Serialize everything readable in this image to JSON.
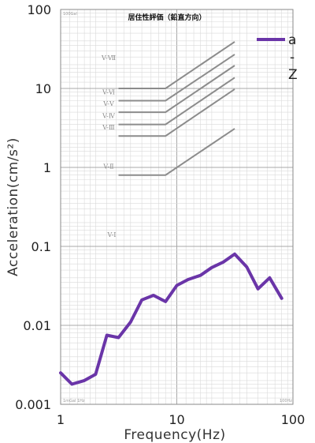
{
  "chart_data": {
    "type": "line",
    "title": "居住性評価（鉛直方向）",
    "xlabel": "Frequency(Hz)",
    "ylabel": "Acceleration(cm/s²)",
    "xscale": "log",
    "yscale": "log",
    "xlim": [
      1,
      100
    ],
    "ylim": [
      0.001,
      100
    ],
    "x_tick_labels": [
      "1",
      "10",
      "100"
    ],
    "y_tick_labels": [
      "0.001",
      "0.01",
      "0.1",
      "1",
      "10",
      "100"
    ],
    "grid": true,
    "legend": {
      "placement": "top-right",
      "entries": [
        "a",
        "-",
        "Z"
      ]
    },
    "series": [
      {
        "name": "a-Z",
        "color": "#6a35a8",
        "x": [
          1,
          1.25,
          1.6,
          2,
          2.5,
          3.15,
          4,
          5,
          6.3,
          8,
          10,
          12.5,
          16,
          20,
          25,
          31.5,
          40,
          50,
          63,
          80
        ],
        "y": [
          0.0025,
          0.0018,
          0.002,
          0.0024,
          0.0075,
          0.007,
          0.011,
          0.021,
          0.024,
          0.02,
          0.032,
          0.038,
          0.043,
          0.054,
          0.063,
          0.08,
          0.055,
          0.029,
          0.04,
          0.022
        ]
      }
    ],
    "reference_curves": {
      "color": "#8c8c8c",
      "curves": [
        {
          "label": "V-Ⅶ",
          "flat_value": 10,
          "x": [
            3.15,
            8,
            31.5
          ],
          "y": [
            10,
            10,
            39
          ]
        },
        {
          "label": "V-Ⅵ",
          "flat_value": 7,
          "x": [
            3.15,
            8,
            31.5
          ],
          "y": [
            7,
            7,
            27
          ]
        },
        {
          "label": "V-Ⅴ",
          "flat_value": 5,
          "x": [
            3.15,
            8,
            31.5
          ],
          "y": [
            5,
            5,
            19.5
          ]
        },
        {
          "label": "V-Ⅳ",
          "flat_value": 3.5,
          "x": [
            3.15,
            8,
            31.5
          ],
          "y": [
            3.5,
            3.5,
            13.7
          ]
        },
        {
          "label": "V-Ⅲ",
          "flat_value": 2.5,
          "x": [
            3.15,
            8,
            31.5
          ],
          "y": [
            2.5,
            2.5,
            9.8
          ]
        },
        {
          "label": "V-Ⅱ",
          "flat_value": 0.8,
          "x": [
            3.15,
            8,
            31.5
          ],
          "y": [
            0.8,
            0.8,
            3.1
          ]
        }
      ],
      "extra_labels": [
        "V-Ⅰ"
      ]
    },
    "corner_labels": [
      "100Gal",
      "1mGal 1Hz",
      "100Hz"
    ]
  }
}
